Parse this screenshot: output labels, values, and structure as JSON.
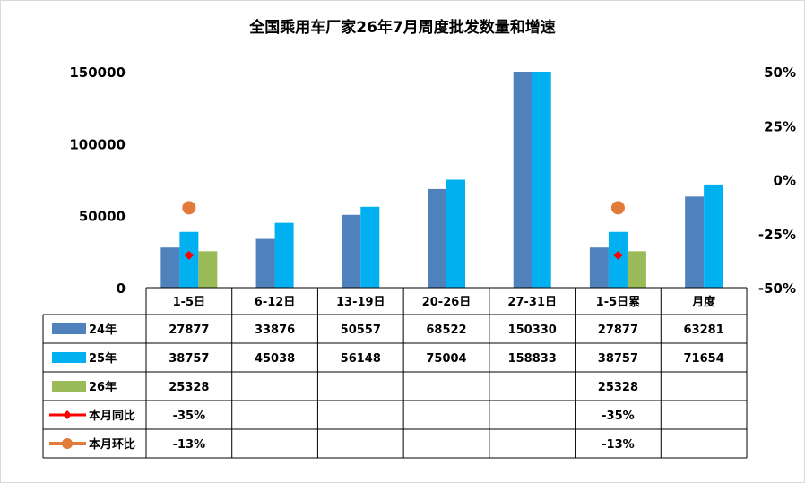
{
  "chart_data": {
    "type": "bar",
    "title": "全国乘用车厂家26年7月周度批发数量和增速",
    "categories": [
      "1-5日",
      "6-12日",
      "13-19日",
      "20-26日",
      "27-31日",
      "1-5日累",
      "月度"
    ],
    "series": [
      {
        "name": "24年",
        "kind": "bar",
        "color": "#4f81bd",
        "values": [
          27877,
          33876,
          50557,
          68522,
          150330,
          27877,
          63281
        ]
      },
      {
        "name": "25年",
        "kind": "bar",
        "color": "#00b0f0",
        "values": [
          38757,
          45038,
          56148,
          75004,
          158833,
          38757,
          71654
        ]
      },
      {
        "name": "26年",
        "kind": "bar",
        "color": "#9bbb59",
        "values": [
          25328,
          null,
          null,
          null,
          null,
          25328,
          null
        ]
      },
      {
        "name": "本月同比",
        "kind": "marker",
        "axis": "right",
        "color": "#ff0000",
        "values": [
          -0.35,
          null,
          null,
          null,
          null,
          -0.35,
          null
        ]
      },
      {
        "name": "本月环比",
        "kind": "marker",
        "axis": "right",
        "color": "#e07b39",
        "values": [
          -0.13,
          null,
          null,
          null,
          null,
          -0.13,
          null
        ]
      }
    ],
    "table_text": [
      [
        "27877",
        "33876",
        "50557",
        "68522",
        "150330",
        "27877",
        "63281"
      ],
      [
        "38757",
        "45038",
        "56148",
        "75004",
        "158833",
        "38757",
        "71654"
      ],
      [
        "25328",
        "",
        "",
        "",
        "",
        "25328",
        ""
      ],
      [
        "-35%",
        "",
        "",
        "",
        "",
        "-35%",
        ""
      ],
      [
        "-13%",
        "",
        "",
        "",
        "",
        "-13%",
        ""
      ]
    ],
    "y_left": {
      "min": 0,
      "max": 150000,
      "ticks": [
        0,
        50000,
        100000,
        150000
      ],
      "tick_labels": [
        "0",
        "50000",
        "100000",
        "150000"
      ]
    },
    "y_right": {
      "min": -0.5,
      "max": 0.5,
      "ticks": [
        -0.5,
        -0.25,
        0,
        0.25,
        0.5
      ],
      "tick_labels": [
        "-50%",
        "-25%",
        "0%",
        "25%",
        "50%"
      ]
    },
    "grid": false,
    "legend": "data-table"
  }
}
